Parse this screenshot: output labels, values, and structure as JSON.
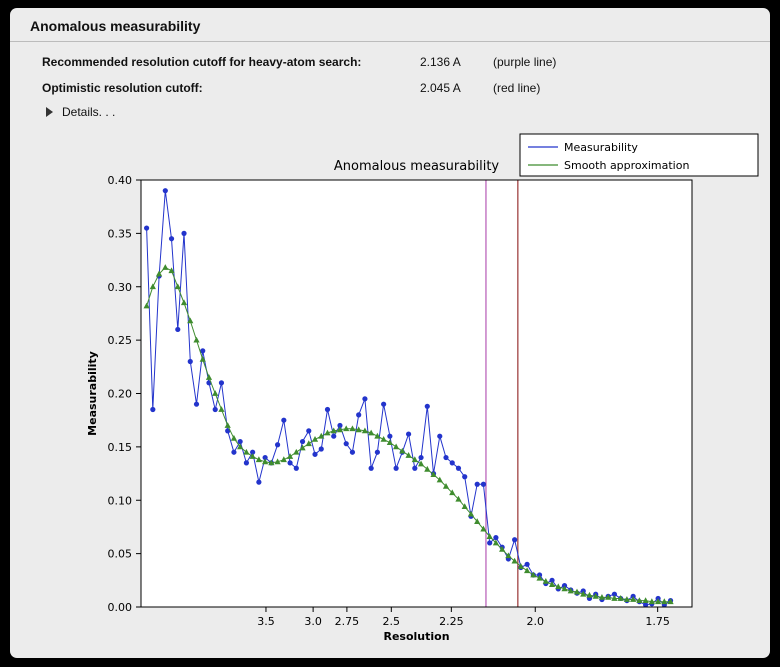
{
  "window": {
    "title": "Anomalous measurability"
  },
  "info_rows": [
    {
      "label": "Recommended resolution cutoff for heavy-atom search:",
      "value": "2.136 A",
      "note": "(purple line)"
    },
    {
      "label": "Optimistic resolution cutoff:",
      "value": "2.045 A",
      "note": "(red line)"
    }
  ],
  "details": {
    "label": "Details. . .",
    "icon": "disclosure-triangle"
  },
  "chart_data": {
    "type": "line",
    "title": "Anomalous measurability",
    "xlabel": "Resolution",
    "ylabel": "Measurability",
    "ylim": [
      0.0,
      0.4
    ],
    "y_ticks": [
      "0.00",
      "0.05",
      "0.10",
      "0.15",
      "0.20",
      "0.25",
      "0.30",
      "0.35",
      "0.40"
    ],
    "x_axis_units": "1/d^2 (reversed resolution, Angstrom)",
    "x_range_inv_d2": [
      0.0035,
      0.348
    ],
    "x_ticks": {
      "labels": [
        "3.5",
        "3.0",
        "2.75",
        "2.5",
        "2.25",
        "2.0",
        "1.75"
      ],
      "d_values": [
        3.5,
        3.0,
        2.75,
        2.5,
        2.25,
        2.0,
        1.75
      ]
    },
    "grid": false,
    "legend_position": "top-right-outside",
    "plot_bg": "#ffffff",
    "figure_bg": "#ececec",
    "vlines": [
      {
        "d": 2.136,
        "color": "#b55ab5",
        "note": "purple line"
      },
      {
        "d": 2.045,
        "color": "#993333",
        "note": "red line"
      }
    ],
    "x_inv_d2": [
      0.007,
      0.0109,
      0.0148,
      0.0187,
      0.0226,
      0.0265,
      0.0304,
      0.0343,
      0.0382,
      0.0421,
      0.046,
      0.0499,
      0.0538,
      0.0577,
      0.0616,
      0.0655,
      0.0694,
      0.0733,
      0.0772,
      0.0811,
      0.085,
      0.0889,
      0.0928,
      0.0967,
      0.1006,
      0.1045,
      0.1084,
      0.1123,
      0.1162,
      0.1201,
      0.124,
      0.1279,
      0.1318,
      0.1357,
      0.1396,
      0.1435,
      0.1474,
      0.1513,
      0.1552,
      0.1591,
      0.163,
      0.1669,
      0.1708,
      0.1747,
      0.1786,
      0.1825,
      0.1864,
      0.1903,
      0.1942,
      0.1981,
      0.202,
      0.2059,
      0.2098,
      0.2137,
      0.2176,
      0.2215,
      0.2254,
      0.2293,
      0.2332,
      0.2371,
      0.241,
      0.2449,
      0.2488,
      0.2527,
      0.2566,
      0.2605,
      0.2644,
      0.2683,
      0.2722,
      0.2761,
      0.28,
      0.2839,
      0.2878,
      0.2917,
      0.2956,
      0.2995,
      0.3034,
      0.3073,
      0.3112,
      0.3151,
      0.319,
      0.3229,
      0.3268,
      0.3307,
      0.3346
    ],
    "series": [
      {
        "name": "Measurability",
        "color": "#2334cc",
        "marker": "circle",
        "values": [
          0.355,
          0.185,
          0.31,
          0.39,
          0.345,
          0.26,
          0.35,
          0.23,
          0.19,
          0.24,
          0.21,
          0.185,
          0.21,
          0.165,
          0.145,
          0.155,
          0.135,
          0.145,
          0.117,
          0.14,
          0.135,
          0.152,
          0.175,
          0.135,
          0.13,
          0.155,
          0.165,
          0.143,
          0.148,
          0.185,
          0.16,
          0.17,
          0.153,
          0.145,
          0.18,
          0.195,
          0.13,
          0.145,
          0.19,
          0.16,
          0.13,
          0.145,
          0.162,
          0.13,
          0.14,
          0.188,
          0.125,
          0.16,
          0.14,
          0.135,
          0.13,
          0.122,
          0.085,
          0.115,
          0.115,
          0.06,
          0.065,
          0.056,
          0.045,
          0.063,
          0.037,
          0.04,
          0.03,
          0.03,
          0.022,
          0.025,
          0.017,
          0.02,
          0.016,
          0.013,
          0.015,
          0.008,
          0.012,
          0.007,
          0.01,
          0.012,
          0.008,
          0.006,
          0.01,
          0.005,
          0.002,
          0.003,
          0.008,
          0.002,
          0.006
        ]
      },
      {
        "name": "Smooth approximation",
        "color": "#3f8c2e",
        "marker": "triangle",
        "values": [
          0.282,
          0.3,
          0.312,
          0.318,
          0.315,
          0.3,
          0.285,
          0.268,
          0.25,
          0.232,
          0.215,
          0.2,
          0.185,
          0.17,
          0.158,
          0.15,
          0.145,
          0.141,
          0.138,
          0.136,
          0.135,
          0.136,
          0.138,
          0.141,
          0.145,
          0.149,
          0.153,
          0.157,
          0.16,
          0.163,
          0.165,
          0.166,
          0.167,
          0.167,
          0.166,
          0.165,
          0.163,
          0.16,
          0.157,
          0.154,
          0.15,
          0.146,
          0.142,
          0.138,
          0.134,
          0.129,
          0.124,
          0.119,
          0.113,
          0.107,
          0.101,
          0.094,
          0.087,
          0.08,
          0.073,
          0.066,
          0.06,
          0.054,
          0.048,
          0.043,
          0.038,
          0.034,
          0.03,
          0.027,
          0.024,
          0.021,
          0.019,
          0.017,
          0.015,
          0.014,
          0.012,
          0.011,
          0.01,
          0.009,
          0.009,
          0.008,
          0.008,
          0.007,
          0.007,
          0.006,
          0.006,
          0.005,
          0.005,
          0.005,
          0.005
        ]
      }
    ]
  }
}
